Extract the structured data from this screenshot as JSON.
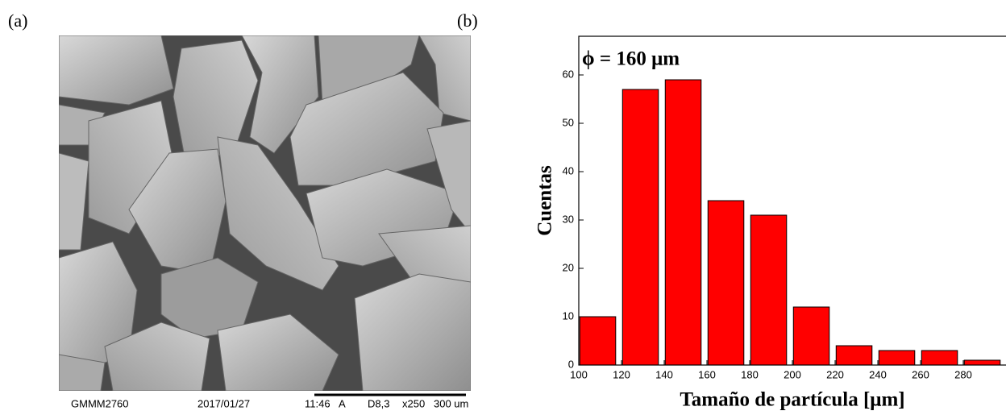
{
  "panel_labels": [
    "(a)",
    "(b)"
  ],
  "image_caption": {
    "id": "GMMM2760",
    "date": "2017/01/27",
    "time": "11:46",
    "mode": "A",
    "setting": "D8,3",
    "magnification": "x250",
    "scale": "300 um"
  },
  "chart_data": {
    "type": "histogram",
    "annotation": "ϕ = 160 μm",
    "xlabel": "Tamaño de partícula [μm]",
    "ylabel": "Cuentas",
    "bins": [
      104,
      124,
      144,
      164,
      184,
      204,
      224,
      244,
      264,
      284,
      304
    ],
    "values": [
      10,
      57,
      59,
      34,
      31,
      12,
      4,
      3,
      3,
      1
    ],
    "color": "#ff0000",
    "xlim": [
      100,
      300
    ],
    "xticks": [
      100,
      120,
      140,
      160,
      180,
      200,
      220,
      240,
      260,
      280
    ],
    "ylim": [
      0,
      68
    ],
    "yticks": [
      0,
      10,
      20,
      30,
      40,
      50,
      60
    ]
  }
}
